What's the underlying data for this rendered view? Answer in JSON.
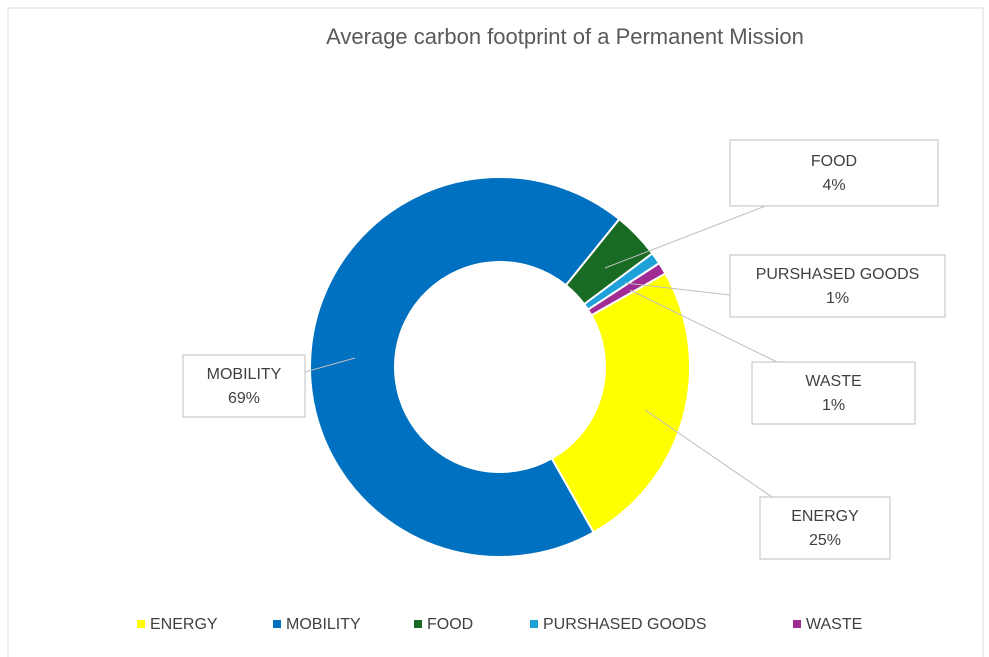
{
  "chart_data": {
    "type": "pie",
    "title": "Average carbon footprint of a Permanent Mission",
    "categories": [
      "ENERGY",
      "MOBILITY",
      "FOOD",
      "PURSHASED GOODS",
      "WASTE"
    ],
    "values": [
      25,
      69,
      4,
      1,
      1
    ],
    "value_labels": [
      "25%",
      "69%",
      "4%",
      "1%",
      "1%"
    ],
    "colors": [
      "#ffff00",
      "#0070c0",
      "#196b24",
      "#1ea0d9",
      "#a02b93"
    ],
    "legend": "bottom"
  }
}
